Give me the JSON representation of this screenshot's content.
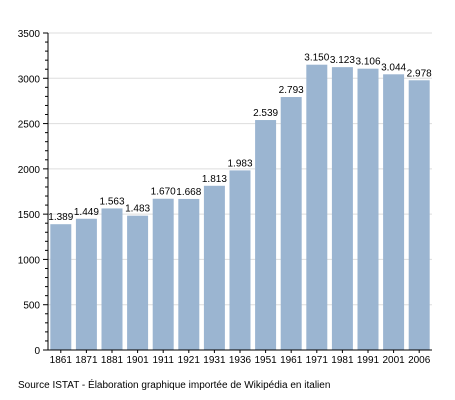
{
  "chart_data": {
    "type": "bar",
    "categories": [
      "1861",
      "1871",
      "1881",
      "1901",
      "1911",
      "1921",
      "1931",
      "1936",
      "1951",
      "1961",
      "1971",
      "1981",
      "1991",
      "2001",
      "2006"
    ],
    "values": [
      1389,
      1449,
      1563,
      1483,
      1670,
      1668,
      1813,
      1983,
      2539,
      2793,
      3150,
      3123,
      3106,
      3044,
      2978
    ],
    "data_labels": [
      "1.389",
      "1.449",
      "1.563",
      "1.483",
      "1.670",
      "1.668",
      "1.813",
      "1.983",
      "2.539",
      "2.793",
      "3.150",
      "3.123",
      "3.106",
      "3.044",
      "2.978"
    ],
    "y_ticks": [
      0,
      500,
      1000,
      1500,
      2000,
      2500,
      3000,
      3500
    ],
    "y_tick_labels": [
      "0",
      "500",
      "1000",
      "1500",
      "2000",
      "2500",
      "3000",
      "3500"
    ],
    "ylim": [
      0,
      3500
    ],
    "grid": true,
    "bar_color": "#9bb5d1",
    "grid_color": "#dddddd",
    "title": "",
    "xlabel": "",
    "ylabel": ""
  },
  "source_note": "Source ISTAT - Élaboration graphique importée de Wikipédia en italien"
}
